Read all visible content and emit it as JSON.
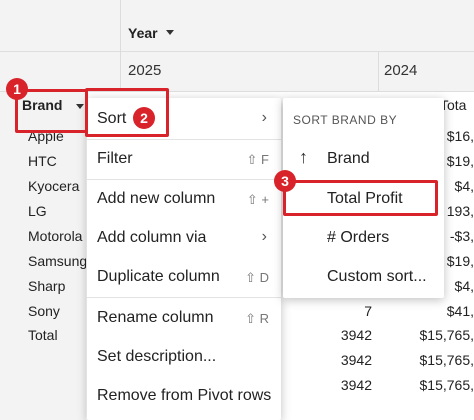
{
  "pivot": {
    "column_header": "Year",
    "years": [
      "2025",
      "2024"
    ],
    "row_header": "Brand",
    "total_col_header_fragment": "Tota",
    "brands": [
      "Apple",
      "HTC",
      "Kyocera",
      "LG",
      "Motorola",
      "Samsung",
      "Sharp",
      "Sony",
      "Total"
    ],
    "visible_orders": [
      "7",
      "3942",
      "3942",
      "3942"
    ],
    "visible_profits": [
      "$16,",
      "$19,",
      "$4,",
      "193,",
      "-$3,",
      "$19,",
      "$4,",
      "$41,",
      "$15,765,",
      "$15,765,",
      "$15,765,"
    ]
  },
  "context_menu": {
    "items": [
      {
        "label": "Sort",
        "shortcut": "",
        "has_submenu": true
      },
      {
        "label": "Filter",
        "shortcut": "⇧ F",
        "has_submenu": false
      },
      {
        "label": "Add new column",
        "shortcut": "⇧ +",
        "has_submenu": false
      },
      {
        "label": "Add column via",
        "shortcut": "",
        "has_submenu": true
      },
      {
        "label": "Duplicate column",
        "shortcut": "⇧ D",
        "has_submenu": false
      },
      {
        "label": "Rename column",
        "shortcut": "⇧ R",
        "has_submenu": false
      },
      {
        "label": "Set description...",
        "shortcut": "",
        "has_submenu": false
      },
      {
        "label": "Remove from Pivot rows",
        "shortcut": "",
        "has_submenu": false
      }
    ]
  },
  "sort_submenu": {
    "title": "SORT BRAND BY",
    "items": [
      "Brand",
      "Total Profit",
      "# Orders",
      "Custom sort..."
    ],
    "brand_arrow": "↑"
  },
  "annotations": {
    "badges": [
      "1",
      "2",
      "3"
    ],
    "highlight_color": "#d8232a"
  },
  "glyphs": {
    "chevron": "›"
  }
}
